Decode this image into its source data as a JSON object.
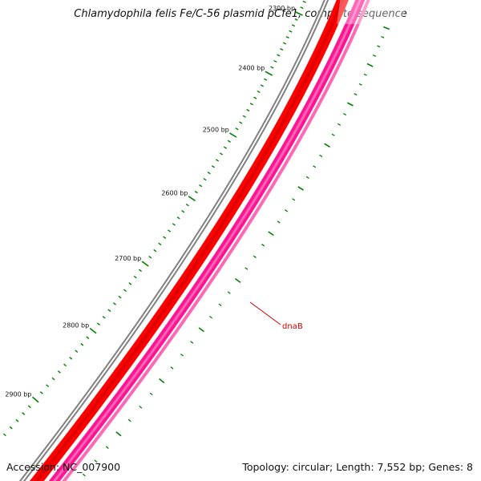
{
  "title": "Chlamydophila felis Fe/C-56 plasmid pCfe1, complete sequence",
  "footer": {
    "accession": "Accession: NC_007900",
    "summary": "Topology: circular; Length: 7,552 bp; Genes: 8"
  },
  "scale": {
    "tick_labels": [
      "2300 bp",
      "2400 bp",
      "2500 bp",
      "2600 bp",
      "2700 bp",
      "2800 bp",
      "2900 bp"
    ]
  },
  "genes": [
    {
      "label": "dnaB",
      "color": "#d40000"
    }
  ],
  "colors": {
    "backbone": "#808080",
    "forward_track": "#ff0000",
    "reverse_track": "#ff1493",
    "tick": "#008000"
  }
}
